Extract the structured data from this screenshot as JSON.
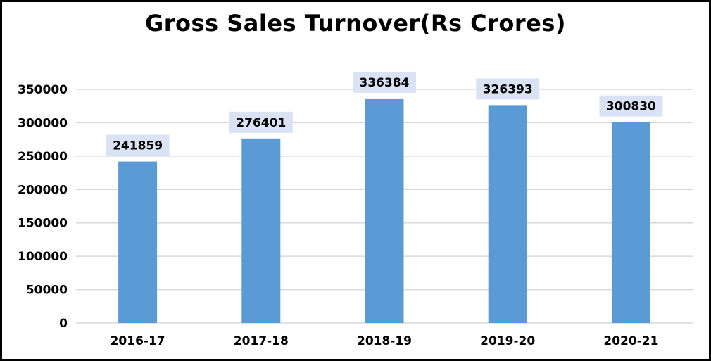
{
  "chart_data": {
    "type": "bar",
    "title": "Gross Sales Turnover(Rs Crores)",
    "categories": [
      "2016-17",
      "2017-18",
      "2018-19",
      "2019-20",
      "2020-21"
    ],
    "values": [
      241859,
      276401,
      336384,
      326393,
      300830
    ],
    "data_labels": [
      "241859",
      "276401",
      "336384",
      "326393",
      "300830"
    ],
    "y_ticks": [
      0,
      50000,
      100000,
      150000,
      200000,
      250000,
      300000,
      350000
    ],
    "y_tick_labels": [
      "0",
      "50000",
      "100000",
      "150000",
      "200000",
      "250000",
      "300000",
      "350000"
    ],
    "ylim": [
      0,
      350000
    ],
    "xlabel": "",
    "ylabel": "",
    "grid": true,
    "legend": "none",
    "colors": {
      "bar": "#5b9bd5",
      "label_bg": "#dae3f3",
      "grid": "#d9d9d9",
      "border": "#000000"
    }
  }
}
